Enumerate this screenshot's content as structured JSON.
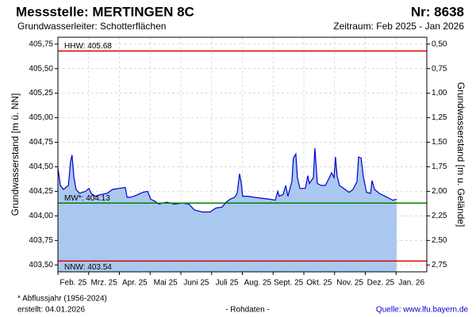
{
  "chart_data": {
    "type": "area",
    "title": "Messstelle: MERTINGEN 8C",
    "number": "Nr: 8638",
    "subtitle": "Grundwasserleiter:  Schotterflächen",
    "period": "Zeitraum: Feb 2025 - Jan 2026",
    "ylabel": "Grundwasserstand [m ü. NN]",
    "y2label": "Grundwasserstand [m u. Gelände]",
    "footnote": "* Abflussjahr (1956-2024)",
    "created": "erstellt:  04.01.2026",
    "note": "- Rohdaten -",
    "source": "Quelle: www.lfu.bayern.de",
    "xlim": [
      0,
      12
    ],
    "xticks": [
      {
        "value": 0,
        "label": "Feb. 25"
      },
      {
        "value": 1,
        "label": "Mrz. 25"
      },
      {
        "value": 2,
        "label": "Apr. 25"
      },
      {
        "value": 3,
        "label": "Mai 25"
      },
      {
        "value": 4,
        "label": "Juni 25"
      },
      {
        "value": 5,
        "label": "Juli 25"
      },
      {
        "value": 6,
        "label": "Aug. 25"
      },
      {
        "value": 7,
        "label": "Sept. 25"
      },
      {
        "value": 8,
        "label": "Okt. 25"
      },
      {
        "value": 9,
        "label": "Nov. 25"
      },
      {
        "value": 10,
        "label": "Dez. 25"
      },
      {
        "value": 11,
        "label": "Jan. 26"
      }
    ],
    "ylim": [
      403.43,
      405.82
    ],
    "yticks": [
      {
        "value": 403.5,
        "label": "403,50"
      },
      {
        "value": 403.75,
        "label": "403,75"
      },
      {
        "value": 404,
        "label": "404,00"
      },
      {
        "value": 404.25,
        "label": "404,25"
      },
      {
        "value": 404.5,
        "label": "404,50"
      },
      {
        "value": 404.75,
        "label": "404,75"
      },
      {
        "value": 405,
        "label": "405,00"
      },
      {
        "value": 405.25,
        "label": "405,25"
      },
      {
        "value": 405.5,
        "label": "405,50"
      },
      {
        "value": 405.75,
        "label": "405,75"
      }
    ],
    "y2lim": [
      2.82,
      0.43
    ],
    "y2ticks": [
      {
        "value": 0.5,
        "label": "0,50"
      },
      {
        "value": 0.75,
        "label": "0,75"
      },
      {
        "value": 1,
        "label": "1,00"
      },
      {
        "value": 1.25,
        "label": "1,25"
      },
      {
        "value": 1.5,
        "label": "1,50"
      },
      {
        "value": 1.75,
        "label": "1,75"
      },
      {
        "value": 2,
        "label": "2,00"
      },
      {
        "value": 2.25,
        "label": "2,25"
      },
      {
        "value": 2.5,
        "label": "2,50"
      },
      {
        "value": 2.75,
        "label": "2,75"
      }
    ],
    "grid": true,
    "line_color": "#0000cc",
    "fill_color": "#a9c8f0",
    "reference_lines": [
      {
        "value": 405.68,
        "label": "HHW: 405.68",
        "color": "#e00000"
      },
      {
        "value": 404.13,
        "label": "MW*: 404.13",
        "color": "#008000"
      },
      {
        "value": 403.54,
        "label": "NNW: 403.54",
        "color": "#e00000"
      }
    ],
    "x": [
      0,
      0.08,
      0.18,
      0.34,
      0.41,
      0.46,
      0.52,
      0.59,
      0.7,
      0.9,
      1.01,
      1.08,
      1.21,
      1.42,
      1.6,
      1.78,
      1.99,
      2.19,
      2.25,
      2.37,
      2.55,
      2.76,
      2.92,
      3.02,
      3.15,
      3.28,
      3.54,
      3.79,
      4.05,
      4.26,
      4.44,
      4.7,
      4.95,
      5.14,
      5.34,
      5.47,
      5.6,
      5.75,
      5.83,
      5.91,
      5.96,
      6.01,
      6.17,
      6.37,
      6.63,
      6.89,
      7.07,
      7.15,
      7.2,
      7.33,
      7.41,
      7.48,
      7.61,
      7.66,
      7.74,
      7.79,
      7.87,
      8.05,
      8.13,
      8.18,
      8.31,
      8.36,
      8.44,
      8.57,
      8.7,
      8.83,
      8.9,
      8.98,
      9.03,
      9.08,
      9.16,
      9.34,
      9.47,
      9.6,
      9.73,
      9.78,
      9.86,
      9.94,
      10.04,
      10.17,
      10.22,
      10.3,
      10.45,
      10.71,
      10.89,
      11.02
    ],
    "values": [
      404.49,
      404.31,
      404.27,
      404.31,
      404.55,
      404.62,
      404.39,
      404.27,
      404.23,
      404.25,
      404.28,
      404.23,
      404.2,
      404.22,
      404.23,
      404.27,
      404.28,
      404.29,
      404.19,
      404.19,
      404.21,
      404.24,
      404.25,
      404.17,
      404.15,
      404.12,
      404.14,
      404.12,
      404.13,
      404.12,
      404.06,
      404.04,
      404.04,
      404.08,
      404.09,
      404.14,
      404.17,
      404.19,
      404.23,
      404.43,
      404.35,
      404.2,
      404.2,
      404.19,
      404.18,
      404.17,
      404.16,
      404.25,
      404.2,
      404.22,
      404.31,
      404.2,
      404.35,
      404.59,
      404.63,
      404.39,
      404.28,
      404.28,
      404.41,
      404.33,
      404.39,
      404.69,
      404.33,
      404.31,
      404.31,
      404.39,
      404.44,
      404.39,
      404.6,
      404.41,
      404.31,
      404.27,
      404.24,
      404.27,
      404.35,
      404.6,
      404.59,
      404.39,
      404.24,
      404.23,
      404.36,
      404.27,
      404.23,
      404.19,
      404.16,
      404.17
    ]
  }
}
